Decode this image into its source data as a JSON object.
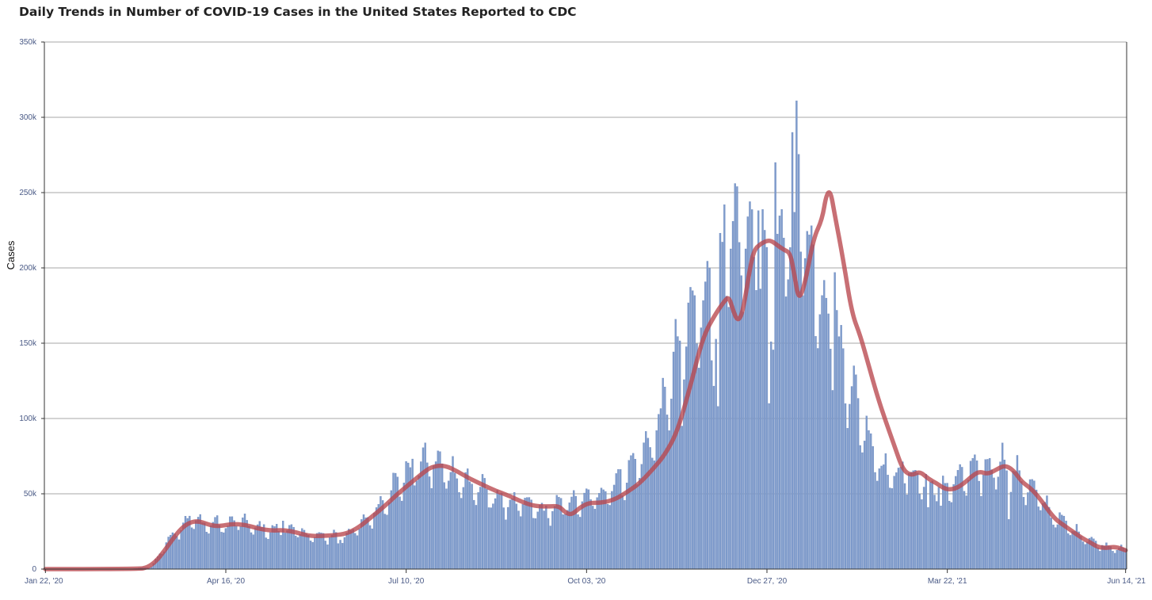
{
  "chart_data": {
    "type": "bar",
    "title": "Daily Trends in Number of COVID-19 Cases in the United States Reported to CDC",
    "ylabel": "Cases",
    "xlabel": "",
    "ylim": [
      0,
      350000
    ],
    "y_ticks": [
      {
        "value": 0,
        "label": "0"
      },
      {
        "value": 50000,
        "label": "50k"
      },
      {
        "value": 100000,
        "label": "100k"
      },
      {
        "value": 150000,
        "label": "150k"
      },
      {
        "value": 200000,
        "label": "200k"
      },
      {
        "value": 250000,
        "label": "250k"
      },
      {
        "value": 300000,
        "label": "300k"
      },
      {
        "value": 350000,
        "label": "350k"
      }
    ],
    "x_ticks": [
      {
        "day": 0,
        "label": "Jan 22, '20"
      },
      {
        "day": 85,
        "label": "Apr 16, '20"
      },
      {
        "day": 170,
        "label": "Jul 10, '20"
      },
      {
        "day": 255,
        "label": "Oct 03, '20"
      },
      {
        "day": 340,
        "label": "Dec 27, '20"
      },
      {
        "day": 425,
        "label": "Mar 22, '21"
      },
      {
        "day": 509,
        "label": "Jun 14, '21"
      }
    ],
    "grid": true,
    "colors": {
      "bars": "#7f9ccc",
      "bar_stroke": "#6a87bd",
      "average_line": "#b9464d",
      "grid": "#8a8a8a",
      "axis": "#333333",
      "tick_text": "#4a5a86"
    },
    "series": [
      {
        "kind": "daily-cases",
        "points": [
          [
            0,
            1
          ],
          [
            40,
            100
          ],
          [
            50,
            1500
          ],
          [
            55,
            12000
          ],
          [
            58,
            20000
          ],
          [
            62,
            25000
          ],
          [
            66,
            31000
          ],
          [
            70,
            33000
          ],
          [
            75,
            29000
          ],
          [
            80,
            30000
          ],
          [
            85,
            28000
          ],
          [
            90,
            32000
          ],
          [
            95,
            29000
          ],
          [
            100,
            27000
          ],
          [
            105,
            26000
          ],
          [
            110,
            25000
          ],
          [
            115,
            26000
          ],
          [
            120,
            24000
          ],
          [
            125,
            22000
          ],
          [
            130,
            21000
          ],
          [
            135,
            22000
          ],
          [
            140,
            22000
          ],
          [
            145,
            25000
          ],
          [
            150,
            30000
          ],
          [
            155,
            37000
          ],
          [
            160,
            46000
          ],
          [
            165,
            55000
          ],
          [
            170,
            62000
          ],
          [
            175,
            68000
          ],
          [
            180,
            70000
          ],
          [
            185,
            68000
          ],
          [
            190,
            64000
          ],
          [
            195,
            60000
          ],
          [
            200,
            56000
          ],
          [
            205,
            52000
          ],
          [
            210,
            48000
          ],
          [
            215,
            45000
          ],
          [
            220,
            43000
          ],
          [
            225,
            42000
          ],
          [
            230,
            41000
          ],
          [
            235,
            37000
          ],
          [
            240,
            40000
          ],
          [
            245,
            43000
          ],
          [
            250,
            44000
          ],
          [
            255,
            45000
          ],
          [
            260,
            48000
          ],
          [
            265,
            52000
          ],
          [
            270,
            58000
          ],
          [
            275,
            64000
          ],
          [
            280,
            72000
          ],
          [
            285,
            82000
          ],
          [
            290,
            100000
          ],
          [
            295,
            125000
          ],
          [
            300,
            150000
          ],
          [
            305,
            165000
          ],
          [
            310,
            178000
          ],
          [
            315,
            165000
          ],
          [
            318,
            185000
          ],
          [
            322,
            210000
          ],
          [
            326,
            220000
          ],
          [
            330,
            218000
          ],
          [
            335,
            212000
          ],
          [
            338,
            205000
          ],
          [
            342,
            180000
          ],
          [
            346,
            195000
          ],
          [
            350,
            232000
          ],
          [
            353,
            262000
          ],
          [
            355,
            248000
          ],
          [
            358,
            230000
          ],
          [
            362,
            200000
          ],
          [
            366,
            180000
          ],
          [
            370,
            163000
          ],
          [
            375,
            140000
          ],
          [
            380,
            118000
          ],
          [
            385,
            97000
          ],
          [
            390,
            80000
          ],
          [
            395,
            65000
          ],
          [
            400,
            62000
          ],
          [
            405,
            64000
          ],
          [
            410,
            60000
          ],
          [
            415,
            57000
          ],
          [
            420,
            54000
          ],
          [
            425,
            54000
          ],
          [
            430,
            58000
          ],
          [
            435,
            63000
          ],
          [
            440,
            64000
          ],
          [
            445,
            66000
          ],
          [
            450,
            70000
          ],
          [
            455,
            66000
          ],
          [
            460,
            58000
          ],
          [
            465,
            52000
          ],
          [
            470,
            44000
          ],
          [
            475,
            36000
          ],
          [
            480,
            30000
          ],
          [
            485,
            25000
          ],
          [
            490,
            21000
          ],
          [
            495,
            17000
          ],
          [
            500,
            15000
          ],
          [
            505,
            14000
          ],
          [
            509,
            12000
          ]
        ],
        "peak_days": [
          [
            112,
            32000
          ],
          [
            200,
            58000
          ],
          [
            313,
            200000
          ],
          [
            320,
            242000
          ],
          [
            324,
            231000
          ],
          [
            326,
            254000
          ],
          [
            332,
            244000
          ],
          [
            336,
            238000
          ],
          [
            341,
            110000
          ],
          [
            344,
            270000
          ],
          [
            352,
            290000
          ],
          [
            353,
            300000
          ],
          [
            354,
            311000
          ],
          [
            360,
            222000
          ],
          [
            361,
            250000
          ]
        ],
        "dip_days": [
          [
            138,
            17000
          ],
          [
            300,
            95000
          ],
          [
            317,
            108000
          ],
          [
            342,
            151000
          ],
          [
            353,
            237000
          ],
          [
            361,
            228000
          ],
          [
            372,
            197000
          ],
          [
            416,
            41000
          ],
          [
            422,
            42000
          ],
          [
            454,
            33000
          ],
          [
            474,
            34000
          ]
        ]
      },
      {
        "kind": "7-day-average",
        "points": [
          [
            0,
            0
          ],
          [
            44,
            0
          ],
          [
            48,
            1000
          ],
          [
            52,
            5000
          ],
          [
            56,
            12000
          ],
          [
            60,
            20000
          ],
          [
            64,
            27000
          ],
          [
            68,
            31000
          ],
          [
            72,
            32000
          ],
          [
            78,
            29000
          ],
          [
            82,
            28500
          ],
          [
            88,
            30000
          ],
          [
            94,
            29500
          ],
          [
            100,
            27000
          ],
          [
            106,
            25500
          ],
          [
            112,
            26000
          ],
          [
            118,
            24500
          ],
          [
            124,
            22000
          ],
          [
            130,
            22000
          ],
          [
            136,
            22500
          ],
          [
            142,
            23500
          ],
          [
            148,
            28000
          ],
          [
            154,
            35000
          ],
          [
            160,
            42000
          ],
          [
            166,
            50000
          ],
          [
            172,
            57000
          ],
          [
            178,
            64000
          ],
          [
            182,
            68000
          ],
          [
            188,
            69000
          ],
          [
            194,
            65000
          ],
          [
            200,
            60000
          ],
          [
            206,
            56000
          ],
          [
            212,
            52000
          ],
          [
            218,
            49000
          ],
          [
            224,
            45000
          ],
          [
            230,
            42000
          ],
          [
            236,
            41500
          ],
          [
            242,
            42000
          ],
          [
            245,
            37500
          ],
          [
            248,
            36000
          ],
          [
            252,
            41000
          ],
          [
            256,
            44000
          ],
          [
            262,
            44000
          ],
          [
            268,
            46000
          ],
          [
            274,
            51000
          ],
          [
            280,
            57000
          ],
          [
            286,
            66000
          ],
          [
            292,
            76000
          ],
          [
            298,
            92000
          ],
          [
            304,
            122000
          ],
          [
            310,
            155000
          ],
          [
            316,
            170000
          ],
          [
            320,
            178000
          ],
          [
            322,
            181000
          ],
          [
            324,
            172000
          ],
          [
            326,
            165000
          ],
          [
            328,
            168000
          ],
          [
            330,
            182000
          ],
          [
            332,
            200000
          ],
          [
            334,
            212000
          ],
          [
            337,
            216000
          ],
          [
            340,
            218000
          ],
          [
            342,
            218000
          ],
          [
            345,
            215000
          ],
          [
            348,
            212000
          ],
          [
            351,
            210000
          ],
          [
            353,
            195000
          ],
          [
            355,
            178000
          ],
          [
            358,
            190000
          ],
          [
            362,
            220000
          ],
          [
            366,
            232000
          ],
          [
            368,
            249000
          ],
          [
            370,
            251000
          ],
          [
            372,
            235000
          ],
          [
            376,
            205000
          ],
          [
            380,
            170000
          ],
          [
            384,
            155000
          ],
          [
            388,
            135000
          ],
          [
            392,
            115000
          ],
          [
            396,
            98000
          ],
          [
            400,
            82000
          ],
          [
            404,
            66000
          ],
          [
            408,
            62000
          ],
          [
            412,
            65000
          ],
          [
            416,
            60000
          ],
          [
            420,
            57000
          ],
          [
            424,
            53000
          ],
          [
            428,
            53000
          ],
          [
            432,
            56000
          ],
          [
            436,
            61000
          ],
          [
            440,
            65000
          ],
          [
            444,
            63000
          ],
          [
            448,
            66000
          ],
          [
            452,
            69000
          ],
          [
            456,
            66000
          ],
          [
            460,
            58000
          ],
          [
            464,
            54000
          ],
          [
            468,
            48000
          ],
          [
            472,
            40000
          ],
          [
            476,
            33000
          ],
          [
            480,
            29000
          ],
          [
            484,
            25000
          ],
          [
            488,
            21000
          ],
          [
            492,
            18000
          ],
          [
            496,
            14500
          ],
          [
            500,
            14000
          ],
          [
            504,
            15000
          ],
          [
            509,
            12500
          ]
        ]
      }
    ]
  }
}
